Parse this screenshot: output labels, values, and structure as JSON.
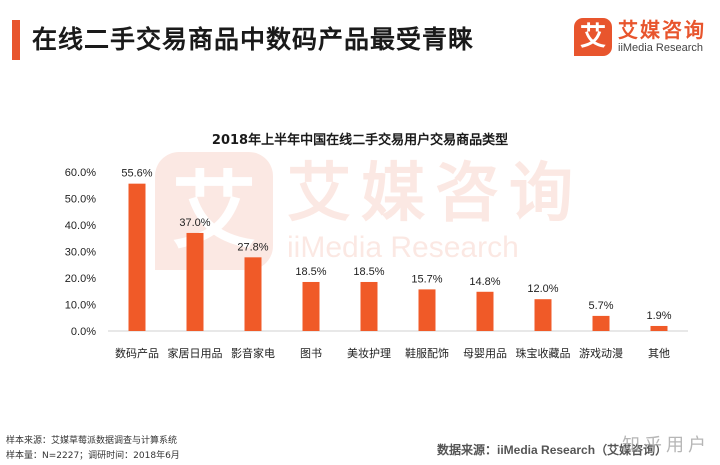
{
  "header": {
    "title": "在线二手交易商品中数码产品最受青睐",
    "brand_mark": "艾",
    "brand_name": "艾媒咨询",
    "brand_sub": "iiMedia Research"
  },
  "watermark": {
    "mark": "艾",
    "name": "艾媒咨询",
    "sub": "iiMedia Research"
  },
  "colors": {
    "accent": "#e8552d",
    "bar": "#f05a28"
  },
  "chart_data": {
    "type": "bar",
    "title": "2018年上半年中国在线二手交易用户交易商品类型",
    "categories": [
      "数码产品",
      "家居日用品",
      "影音家电",
      "图书",
      "美妆护理",
      "鞋服配饰",
      "母婴用品",
      "珠宝收藏品",
      "游戏动漫",
      "其他"
    ],
    "values": [
      55.6,
      37.0,
      27.8,
      18.5,
      18.5,
      15.7,
      14.8,
      12.0,
      5.7,
      1.9
    ],
    "value_labels": [
      "55.6%",
      "37.0%",
      "27.8%",
      "18.5%",
      "18.5%",
      "15.7%",
      "14.8%",
      "12.0%",
      "5.7%",
      "1.9%"
    ],
    "y_ticks": [
      0,
      10,
      20,
      30,
      40,
      50,
      60
    ],
    "y_tick_labels": [
      "0.0%",
      "10.0%",
      "20.0%",
      "30.0%",
      "40.0%",
      "50.0%",
      "60.0%"
    ],
    "ylim": [
      0,
      60
    ],
    "grid": false,
    "legend": "none"
  },
  "footer": {
    "sample_source": "样本来源：艾媒草莓派数据调查与计算系统",
    "sample_info": "样本量：N=2227；调研时间：2018年6月",
    "data_source_prefix": "数据来源：",
    "data_source_name": "iiMedia Research",
    "data_source_suffix": "（艾媒咨询）",
    "zhihu_mark": "知乎用户"
  }
}
